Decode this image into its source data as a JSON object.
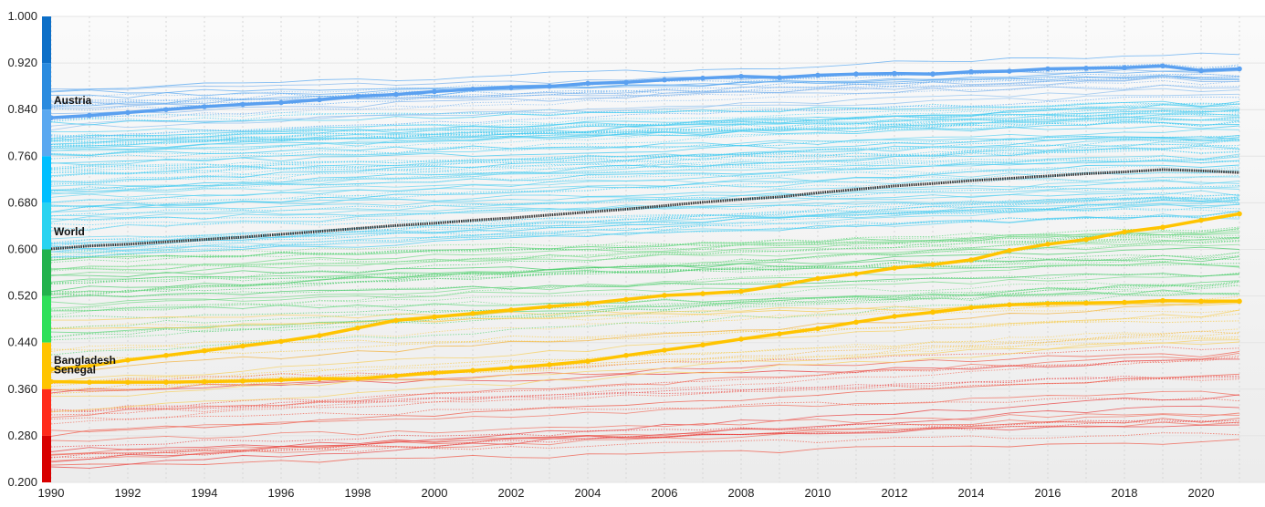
{
  "chart_data": {
    "type": "line",
    "title": "",
    "xlabel": "",
    "ylabel": "",
    "xlim": [
      1990,
      2021
    ],
    "ylim": [
      0.2,
      1.0
    ],
    "x_ticks": [
      "1990",
      "1992",
      "1994",
      "1996",
      "1998",
      "2000",
      "2002",
      "2004",
      "2006",
      "2008",
      "2010",
      "2012",
      "2014",
      "2016",
      "2018",
      "2020"
    ],
    "y_ticks": [
      "1.000",
      "0.920",
      "0.840",
      "0.760",
      "0.680",
      "0.600",
      "0.520",
      "0.440",
      "0.360",
      "0.280",
      "0.200"
    ],
    "grid": true,
    "color_scale": [
      {
        "from": 0.92,
        "to": 1.0,
        "color": "#0d6fc7"
      },
      {
        "from": 0.84,
        "to": 0.92,
        "color": "#2a8bdf"
      },
      {
        "from": 0.76,
        "to": 0.84,
        "color": "#5aa8f0"
      },
      {
        "from": 0.68,
        "to": 0.76,
        "color": "#00bfff"
      },
      {
        "from": 0.6,
        "to": 0.68,
        "color": "#29d3f0"
      },
      {
        "from": 0.52,
        "to": 0.6,
        "color": "#22b24c"
      },
      {
        "from": 0.44,
        "to": 0.52,
        "color": "#2ee05a"
      },
      {
        "from": 0.36,
        "to": 0.44,
        "color": "#ffc400"
      },
      {
        "from": 0.28,
        "to": 0.36,
        "color": "#ff2a1a"
      },
      {
        "from": 0.2,
        "to": 0.28,
        "color": "#d80000"
      }
    ],
    "series": [
      {
        "name": "Austria",
        "color": "#5aa0f0",
        "x": [
          1990,
          1991,
          1992,
          1993,
          1994,
          1995,
          1996,
          1997,
          1998,
          1999,
          2000,
          2001,
          2002,
          2003,
          2004,
          2005,
          2006,
          2007,
          2008,
          2009,
          2010,
          2011,
          2012,
          2013,
          2014,
          2015,
          2016,
          2017,
          2018,
          2019,
          2020,
          2021
        ],
        "values": [
          0.826,
          0.83,
          0.835,
          0.84,
          0.845,
          0.849,
          0.852,
          0.857,
          0.863,
          0.866,
          0.871,
          0.875,
          0.878,
          0.88,
          0.885,
          0.887,
          0.891,
          0.894,
          0.897,
          0.895,
          0.899,
          0.901,
          0.902,
          0.901,
          0.905,
          0.906,
          0.91,
          0.911,
          0.912,
          0.915,
          0.907,
          0.91
        ]
      },
      {
        "name": "World",
        "color": "#444444",
        "x": [
          1990,
          1991,
          1992,
          1993,
          1994,
          1995,
          1996,
          1997,
          1998,
          1999,
          2000,
          2001,
          2002,
          2003,
          2004,
          2005,
          2006,
          2007,
          2008,
          2009,
          2010,
          2011,
          2012,
          2013,
          2014,
          2015,
          2016,
          2017,
          2018,
          2019,
          2020,
          2021
        ],
        "values": [
          0.601,
          0.606,
          0.609,
          0.613,
          0.617,
          0.621,
          0.626,
          0.631,
          0.636,
          0.641,
          0.645,
          0.65,
          0.654,
          0.659,
          0.664,
          0.669,
          0.675,
          0.681,
          0.686,
          0.69,
          0.697,
          0.703,
          0.709,
          0.713,
          0.718,
          0.722,
          0.726,
          0.73,
          0.733,
          0.737,
          0.735,
          0.732
        ]
      },
      {
        "name": "Bangladesh",
        "color": "#ffc400",
        "x": [
          1990,
          1991,
          1992,
          1993,
          1994,
          1995,
          1996,
          1997,
          1998,
          1999,
          2000,
          2001,
          2002,
          2003,
          2004,
          2005,
          2006,
          2007,
          2008,
          2009,
          2010,
          2011,
          2012,
          2013,
          2014,
          2015,
          2016,
          2017,
          2018,
          2019,
          2020,
          2021
        ],
        "values": [
          0.394,
          0.4,
          0.41,
          0.418,
          0.426,
          0.434,
          0.442,
          0.452,
          0.465,
          0.478,
          0.484,
          0.49,
          0.496,
          0.502,
          0.507,
          0.514,
          0.521,
          0.524,
          0.528,
          0.538,
          0.55,
          0.558,
          0.568,
          0.574,
          0.582,
          0.598,
          0.609,
          0.617,
          0.63,
          0.638,
          0.65,
          0.661
        ]
      },
      {
        "name": "Senegal",
        "color": "#ffc400",
        "x": [
          1990,
          1991,
          1992,
          1993,
          1994,
          1995,
          1996,
          1997,
          1998,
          1999,
          2000,
          2001,
          2002,
          2003,
          2004,
          2005,
          2006,
          2007,
          2008,
          2009,
          2010,
          2011,
          2012,
          2013,
          2014,
          2015,
          2016,
          2017,
          2018,
          2019,
          2020,
          2021
        ],
        "values": [
          0.373,
          0.372,
          0.372,
          0.372,
          0.373,
          0.374,
          0.376,
          0.378,
          0.378,
          0.383,
          0.388,
          0.392,
          0.397,
          0.402,
          0.408,
          0.418,
          0.427,
          0.436,
          0.446,
          0.455,
          0.464,
          0.475,
          0.485,
          0.492,
          0.5,
          0.505,
          0.507,
          0.508,
          0.509,
          0.512,
          0.511,
          0.511
        ]
      }
    ]
  }
}
